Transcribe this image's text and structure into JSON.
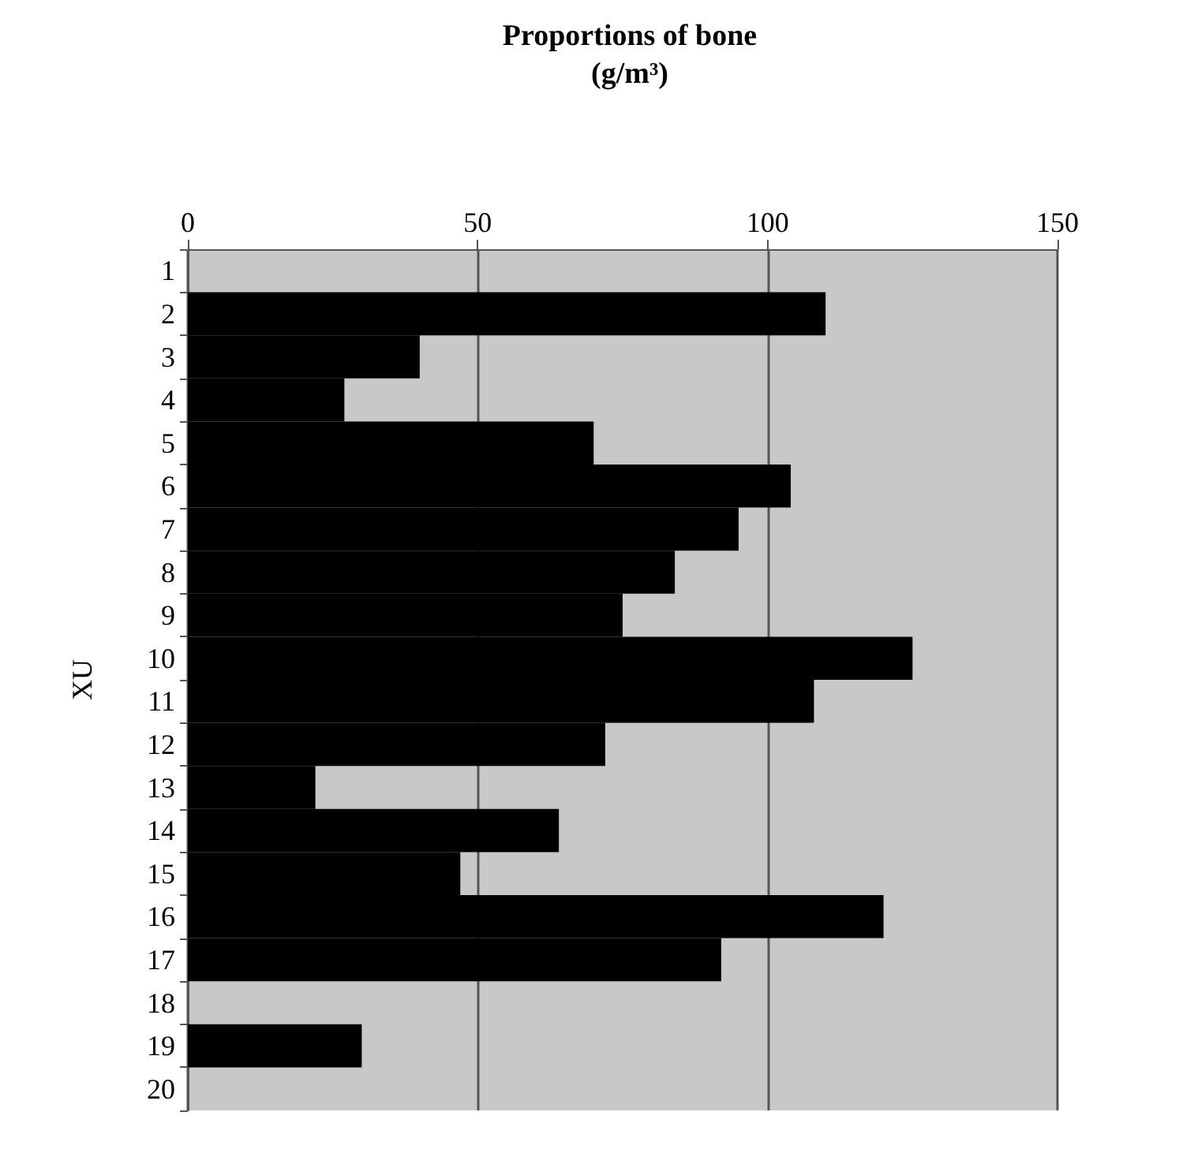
{
  "chart_data": {
    "type": "bar",
    "orientation": "horizontal",
    "title": "Proportions of bone\n(g/m³)",
    "ylabel": "XU",
    "categories": [
      "1",
      "2",
      "3",
      "4",
      "5",
      "6",
      "7",
      "8",
      "9",
      "10",
      "11",
      "12",
      "13",
      "14",
      "15",
      "16",
      "17",
      "18",
      "19",
      "20"
    ],
    "values": [
      null,
      110,
      40,
      27,
      70,
      104,
      95,
      84,
      75,
      125,
      108,
      72,
      22,
      64,
      47,
      120,
      92,
      null,
      30,
      null
    ],
    "color": "#000000",
    "xlim": [
      0,
      150
    ],
    "xticks": [
      0,
      50,
      100,
      150
    ],
    "grid": "x"
  }
}
